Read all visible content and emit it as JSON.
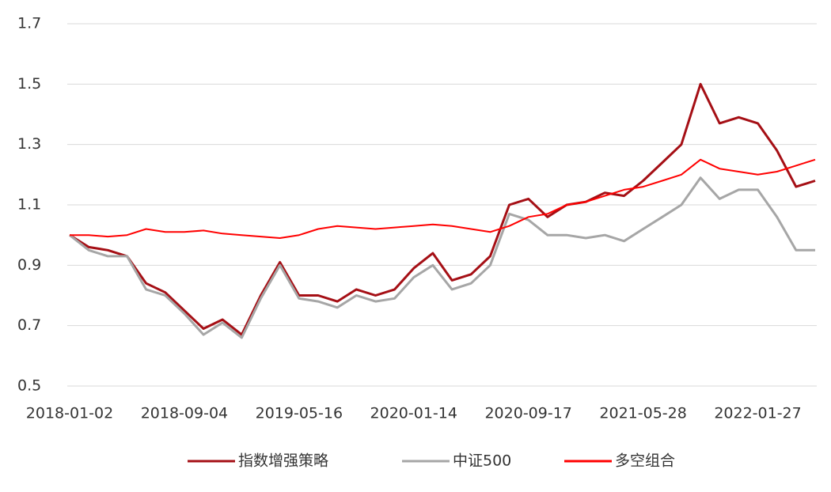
{
  "chart_data": {
    "type": "line",
    "categories": [
      "2018-01-02",
      null,
      null,
      null,
      null,
      null,
      "2018-09-04",
      null,
      null,
      null,
      null,
      null,
      "2019-05-16",
      null,
      null,
      null,
      null,
      null,
      "2020-01-14",
      null,
      null,
      null,
      null,
      null,
      "2020-09-17",
      null,
      null,
      null,
      null,
      null,
      "2021-05-28",
      null,
      null,
      null,
      null,
      null,
      "2022-01-27",
      null,
      null,
      null
    ],
    "series": [
      {
        "name": "指数增强策略",
        "color": "#a50f15",
        "values": [
          1.0,
          0.96,
          0.95,
          0.93,
          0.84,
          0.81,
          0.75,
          0.69,
          0.72,
          0.67,
          0.8,
          0.91,
          0.8,
          0.8,
          0.78,
          0.82,
          0.8,
          0.82,
          0.89,
          0.94,
          0.85,
          0.87,
          0.93,
          1.1,
          1.12,
          1.06,
          1.1,
          1.11,
          1.14,
          1.13,
          1.18,
          1.24,
          1.3,
          1.5,
          1.37,
          1.39,
          1.37,
          1.28,
          1.16,
          1.18
        ]
      },
      {
        "name": "中证500",
        "color": "#a6a6a6",
        "values": [
          1.0,
          0.95,
          0.93,
          0.93,
          0.82,
          0.8,
          0.74,
          0.67,
          0.71,
          0.66,
          0.79,
          0.9,
          0.79,
          0.78,
          0.76,
          0.8,
          0.78,
          0.79,
          0.86,
          0.9,
          0.82,
          0.84,
          0.9,
          1.07,
          1.05,
          1.0,
          1.0,
          0.99,
          1.0,
          0.98,
          1.02,
          1.06,
          1.1,
          1.19,
          1.12,
          1.15,
          1.15,
          1.06,
          0.95,
          0.95
        ]
      },
      {
        "name": "多空组合",
        "color": "#ff0000",
        "values": [
          1.0,
          1.0,
          0.995,
          1.0,
          1.02,
          1.01,
          1.01,
          1.015,
          1.005,
          1.0,
          0.995,
          0.99,
          1.0,
          1.02,
          1.03,
          1.025,
          1.02,
          1.025,
          1.03,
          1.035,
          1.03,
          1.02,
          1.01,
          1.03,
          1.06,
          1.07,
          1.1,
          1.11,
          1.13,
          1.15,
          1.16,
          1.18,
          1.2,
          1.25,
          1.22,
          1.21,
          1.2,
          1.21,
          1.23,
          1.25
        ]
      }
    ],
    "ylim": [
      0.5,
      1.7
    ],
    "yticks": [
      0.5,
      0.7,
      0.9,
      1.1,
      1.3,
      1.5,
      1.7
    ],
    "grid": true
  }
}
